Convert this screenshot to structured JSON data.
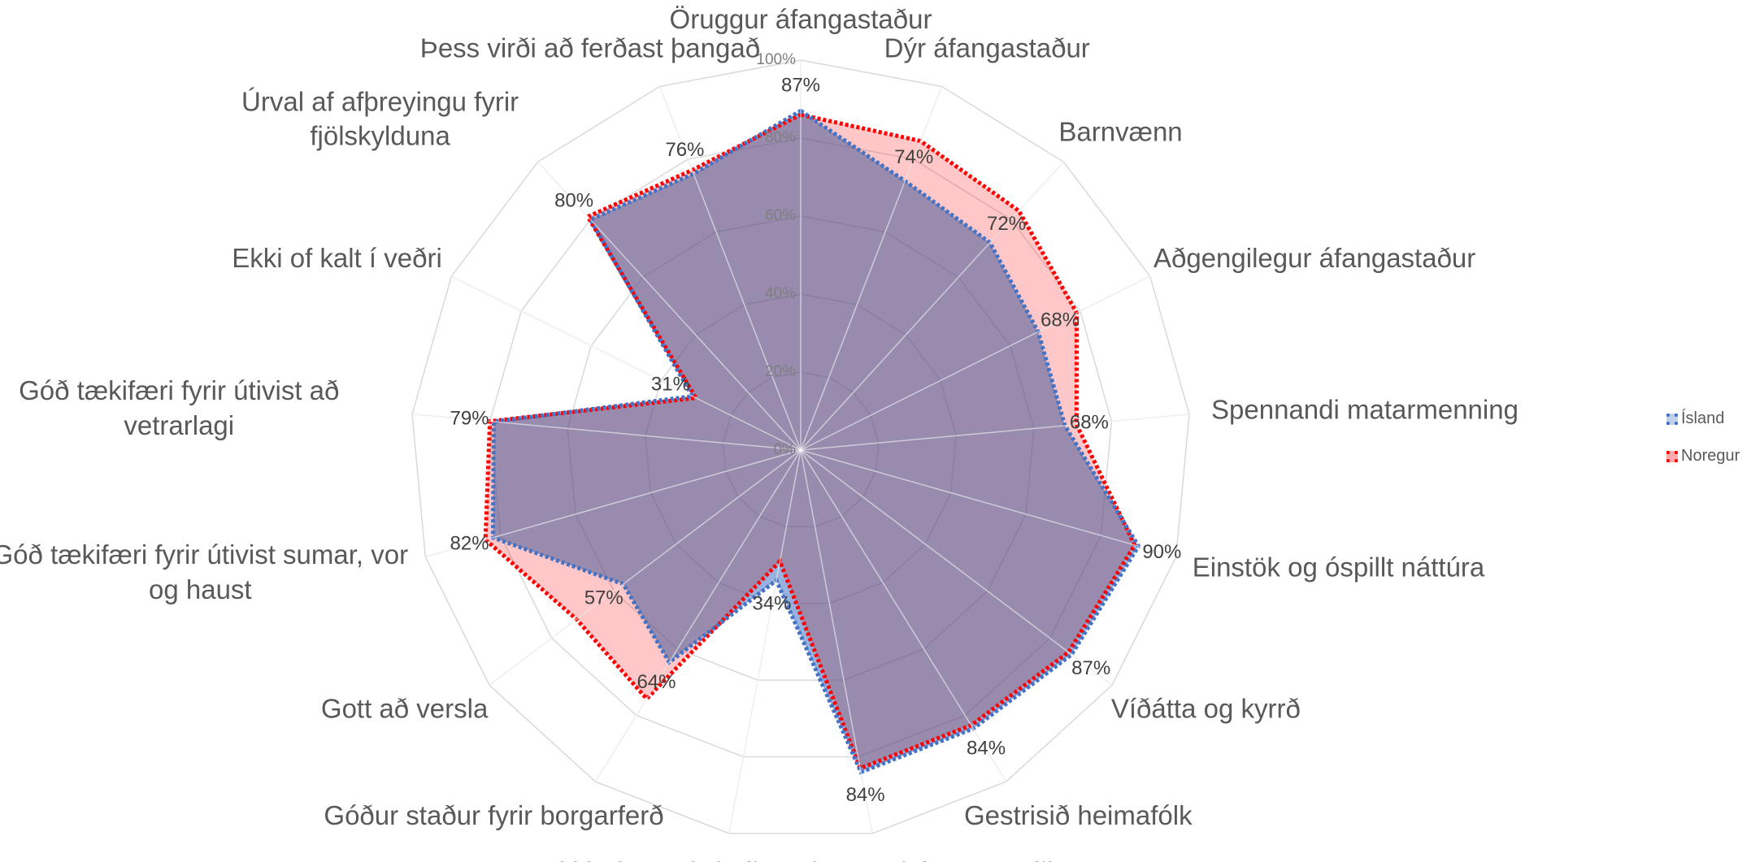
{
  "chart_data": {
    "type": "radar",
    "categories": [
      "Öruggur áfangastaður",
      "Dýr áfangastaður",
      "Barnvænn",
      "Aðgengilegur áfangastaður",
      "Spennandi matarmenning",
      "Einstök og óspillt náttúra",
      "Víðátta og kyrrð",
      "Gestrisið heimafólk",
      "Sögulegar minjar og staðir",
      "Ekki of margir ferðamenn*",
      "Góður staður fyrir borgarferð",
      "Gott að versla",
      "Góð tækifæri fyrir útivist sumar, vor og haust",
      "Góð tækifæri fyrir útivist að vetrarlagi",
      "Ekki of kalt í veðri",
      "Úrval af afþreyingu fyrir fjölskylduna",
      "Þess virði að ferðast þangað"
    ],
    "series": [
      {
        "name": "Ísland",
        "color": "#4472c4",
        "values": [
          87,
          74,
          72,
          68,
          68,
          90,
          87,
          84,
          84,
          34,
          64,
          57,
          82,
          79,
          31,
          80,
          76
        ],
        "value_labels": [
          "87%",
          "74%",
          "72%",
          "68%",
          "68%",
          "90%",
          "87%",
          "84%",
          "84%",
          "34%",
          "64%",
          "57%",
          "82%",
          "79%",
          "31%",
          "80%",
          "76%"
        ]
      },
      {
        "name": "Noregur",
        "color": "#ff0000",
        "values": [
          86,
          85,
          83,
          79,
          71,
          89,
          86,
          83,
          83,
          29,
          75,
          72,
          84,
          80,
          30,
          81,
          77
        ]
      }
    ],
    "ylim": [
      0,
      100
    ],
    "yticks": [
      {
        "value": 0,
        "label": "0%"
      },
      {
        "value": 20,
        "label": "20%"
      },
      {
        "value": 40,
        "label": "40%"
      },
      {
        "value": 60,
        "label": "60%"
      },
      {
        "value": 80,
        "label": "80%"
      },
      {
        "value": 100,
        "label": "100%"
      }
    ],
    "grid": true,
    "legend": "right"
  }
}
